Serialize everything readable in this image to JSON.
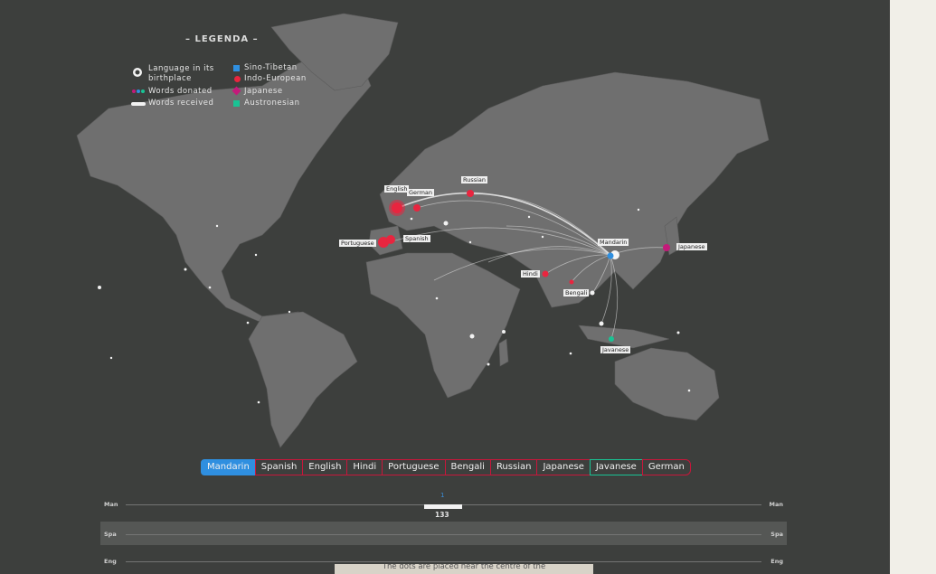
{
  "legend": {
    "title": "– LEGENDA –",
    "items": [
      {
        "label": "Language in its\nbirthplace",
        "icon": "white-dot-icon"
      },
      {
        "label": "Words donated",
        "icon": "multicolor-dots-icon"
      },
      {
        "label": "Words received",
        "icon": "white-line-icon"
      }
    ],
    "families": [
      {
        "label": "Sino-Tibetan",
        "color": "#2f8fe0"
      },
      {
        "label": "Indo-European",
        "color": "#e8253f"
      },
      {
        "label": "Japanese",
        "color": "#c41a7a"
      },
      {
        "label": "Austronesian",
        "color": "#19c394"
      }
    ]
  },
  "cities": {
    "english": "English",
    "german": "German",
    "russian": "Russian",
    "portuguese": "Portuguese",
    "spanish": "Spanish",
    "mandarin": "Mandarin",
    "japanese": "Japanese",
    "hindi": "Hindi",
    "bengali": "Bengali",
    "javanese": "Javanese"
  },
  "languages": [
    "Mandarin",
    "Spanish",
    "English",
    "Hindi",
    "Portuguese",
    "Bengali",
    "Russian",
    "Japanese",
    "Javanese",
    "German"
  ],
  "active_language": "Mandarin",
  "tracks": [
    {
      "label": "Man"
    },
    {
      "label": "Spa"
    },
    {
      "label": "Eng"
    }
  ],
  "slider": {
    "top": "1",
    "value": "133"
  },
  "note": "The dots are placed near the centre of the",
  "colors": {
    "panel": "#3d3f3d",
    "land": "#6f6f6f",
    "page": "#f1efe8"
  }
}
